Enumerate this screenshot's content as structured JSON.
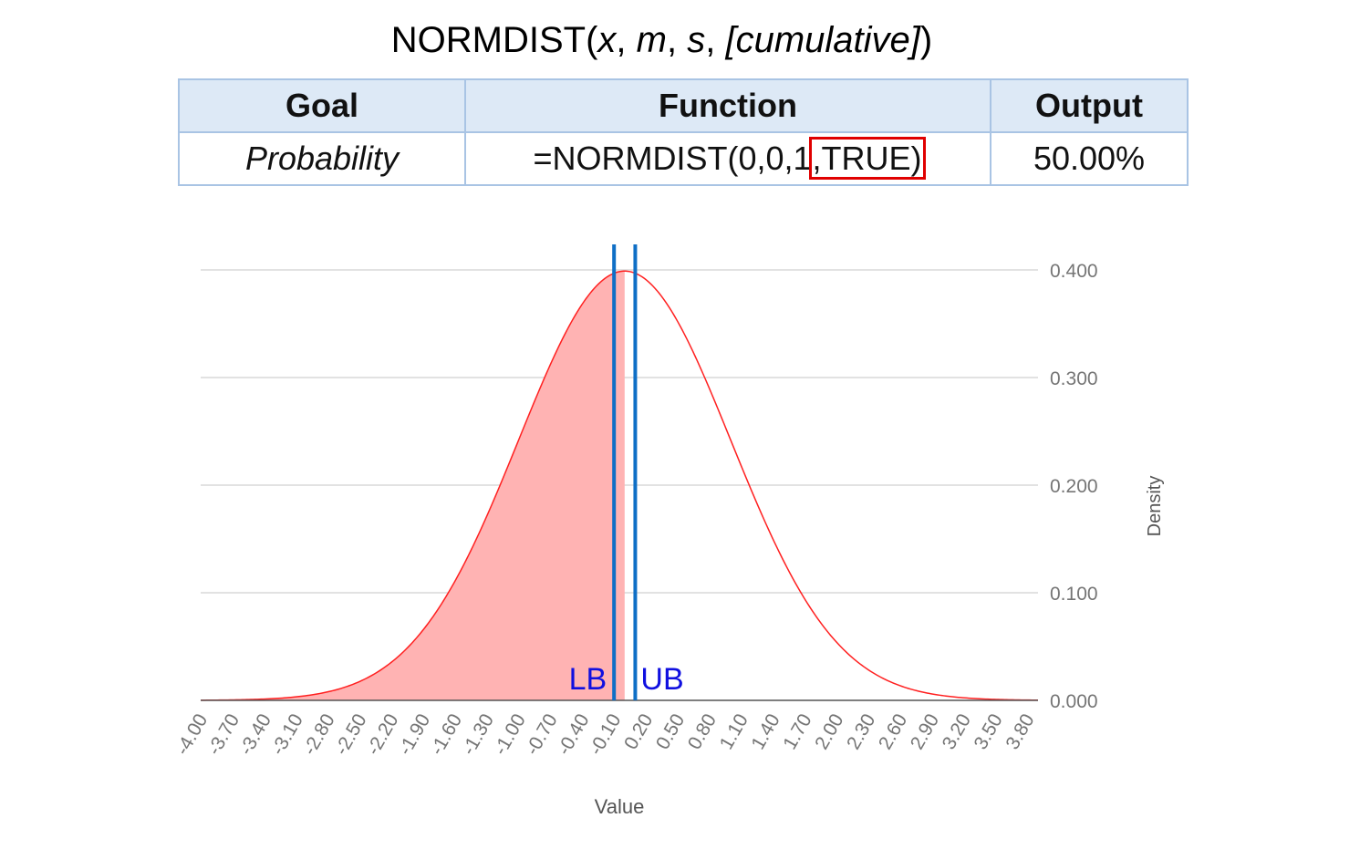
{
  "title": {
    "func": "NORMDIST(",
    "x": "x",
    "sep1": ", ",
    "m": "m",
    "sep2": ", ",
    "s": "s",
    "sep3": ", ",
    "cumulative": "[cumulative]",
    "close": ")"
  },
  "table": {
    "headers": [
      "Goal",
      "Function",
      "Output"
    ],
    "row": {
      "goal": "Probability",
      "function_prefix": "=NORMDIST(0,0,1",
      "function_highlight": ",TRUE)",
      "output": "50.00%"
    },
    "highlight_color": "#e00000",
    "header_bg": "#dde9f6",
    "border_color": "#a9c4e4"
  },
  "chart_data": {
    "type": "area",
    "xlabel": "Value",
    "ylabel": "Density",
    "x_range": [
      -4.0,
      3.9
    ],
    "ylim": [
      0,
      0.4
    ],
    "yticks": [
      "0.000",
      "0.100",
      "0.200",
      "0.300",
      "0.400"
    ],
    "xticks": [
      "-4.00",
      "-3.70",
      "-3.40",
      "-3.10",
      "-2.80",
      "-2.50",
      "-2.20",
      "-1.90",
      "-1.60",
      "-1.30",
      "-1.00",
      "-0.70",
      "-0.40",
      "-0.10",
      "0.20",
      "0.50",
      "0.80",
      "1.10",
      "1.40",
      "1.70",
      "2.00",
      "2.30",
      "2.60",
      "2.90",
      "3.20",
      "3.50",
      "3.80"
    ],
    "series": [
      {
        "distribution": "normal",
        "mean": 0,
        "sd": 1,
        "color": "#ff2020",
        "fill": "#ffb3b3",
        "filled_up_to": 0.0
      }
    ],
    "lines": [
      {
        "label": "LB",
        "x": -0.1,
        "color": "#0f6fc6"
      },
      {
        "label": "UB",
        "x": 0.1,
        "color": "#0f6fc6"
      }
    ],
    "grid": true,
    "y_axis_side": "right"
  }
}
